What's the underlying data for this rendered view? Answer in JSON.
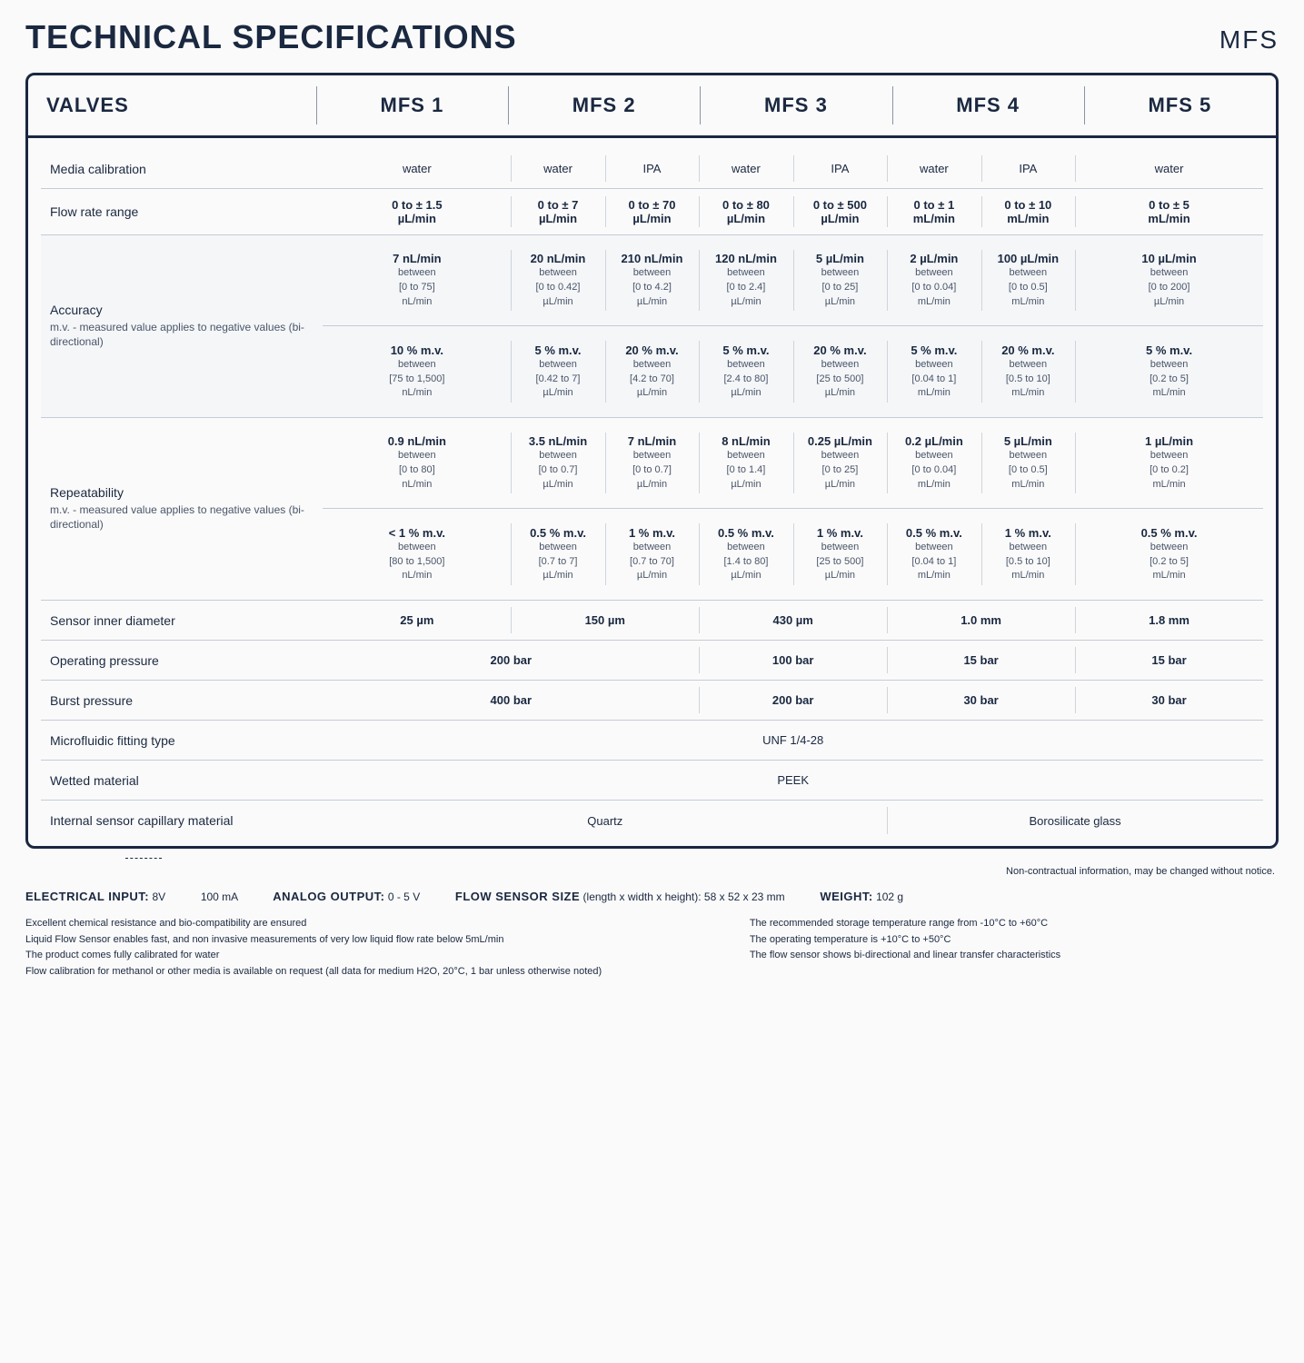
{
  "page": {
    "title": "TECHNICAL SPECIFICATIONS",
    "badge": "MFS",
    "disclaimer": "Non-contractual information, may be changed without notice."
  },
  "columns": [
    "VALVES",
    "MFS 1",
    "MFS 2",
    "MFS 3",
    "MFS 4",
    "MFS 5"
  ],
  "rows": {
    "media_calibration": {
      "label": "Media calibration",
      "values": [
        "water",
        "water",
        "IPA",
        "water",
        "IPA",
        "water",
        "IPA",
        "water"
      ]
    },
    "flow_rate": {
      "label": "Flow rate range",
      "values": [
        {
          "main": "0 to ± 1.5",
          "unit": "µL/min"
        },
        {
          "main": "0 to ± 7",
          "unit": "µL/min"
        },
        {
          "main": "0 to ± 70",
          "unit": "µL/min"
        },
        {
          "main": "0 to ± 80",
          "unit": "µL/min"
        },
        {
          "main": "0 to ± 500",
          "unit": "µL/min"
        },
        {
          "main": "0 to ± 1",
          "unit": "mL/min"
        },
        {
          "main": "0 to ± 10",
          "unit": "mL/min"
        },
        {
          "main": "0 to ± 5",
          "unit": "mL/min"
        }
      ]
    },
    "accuracy": {
      "label": "Accuracy",
      "sublabel": "m.v. - measured value applies to negative values (bi-directional)",
      "top": [
        {
          "main": "7 nL/min",
          "s1": "between",
          "s2": "[0 to 75]",
          "s3": "nL/min"
        },
        {
          "main": "20 nL/min",
          "s1": "between",
          "s2": "[0 to 0.42]",
          "s3": "µL/min"
        },
        {
          "main": "210 nL/min",
          "s1": "between",
          "s2": "[0 to 4.2]",
          "s3": "µL/min"
        },
        {
          "main": "120 nL/min",
          "s1": "between",
          "s2": "[0 to 2.4]",
          "s3": "µL/min"
        },
        {
          "main": "5 µL/min",
          "s1": "between",
          "s2": "[0 to 25]",
          "s3": "µL/min"
        },
        {
          "main": "2 µL/min",
          "s1": "between",
          "s2": "[0 to 0.04]",
          "s3": "mL/min"
        },
        {
          "main": "100 µL/min",
          "s1": "between",
          "s2": "[0 to 0.5]",
          "s3": "mL/min"
        },
        {
          "main": "10 µL/min",
          "s1": "between",
          "s2": "[0 to 200]",
          "s3": "µL/min"
        }
      ],
      "bottom": [
        {
          "main": "10 % m.v.",
          "s1": "between",
          "s2": "[75 to 1,500]",
          "s3": "nL/min"
        },
        {
          "main": "5 % m.v.",
          "s1": "between",
          "s2": "[0.42 to 7]",
          "s3": "µL/min"
        },
        {
          "main": "20 % m.v.",
          "s1": "between",
          "s2": "[4.2 to 70]",
          "s3": "µL/min"
        },
        {
          "main": "5 % m.v.",
          "s1": "between",
          "s2": "[2.4 to 80]",
          "s3": "µL/min"
        },
        {
          "main": "20 % m.v.",
          "s1": "between",
          "s2": "[25 to 500]",
          "s3": "µL/min"
        },
        {
          "main": "5 % m.v.",
          "s1": "between",
          "s2": "[0.04 to 1]",
          "s3": "mL/min"
        },
        {
          "main": "20 % m.v.",
          "s1": "between",
          "s2": "[0.5 to 10]",
          "s3": "mL/min"
        },
        {
          "main": "5 % m.v.",
          "s1": "between",
          "s2": "[0.2 to 5]",
          "s3": "mL/min"
        }
      ]
    },
    "repeatability": {
      "label": "Repeatability",
      "sublabel": "m.v. - measured value applies to negative values (bi-directional)",
      "top": [
        {
          "main": "0.9 nL/min",
          "s1": "between",
          "s2": "[0 to 80]",
          "s3": "nL/min"
        },
        {
          "main": "3.5 nL/min",
          "s1": "between",
          "s2": "[0 to 0.7]",
          "s3": "µL/min"
        },
        {
          "main": "7 nL/min",
          "s1": "between",
          "s2": "[0 to 0.7]",
          "s3": "µL/min"
        },
        {
          "main": "8 nL/min",
          "s1": "between",
          "s2": "[0 to 1.4]",
          "s3": "µL/min"
        },
        {
          "main": "0.25 µL/min",
          "s1": "between",
          "s2": "[0 to 25]",
          "s3": "µL/min"
        },
        {
          "main": "0.2 µL/min",
          "s1": "between",
          "s2": "[0 to 0.04]",
          "s3": "mL/min"
        },
        {
          "main": "5 µL/min",
          "s1": "between",
          "s2": "[0 to 0.5]",
          "s3": "mL/min"
        },
        {
          "main": "1 µL/min",
          "s1": "between",
          "s2": "[0 to 0.2]",
          "s3": "mL/min"
        }
      ],
      "bottom": [
        {
          "main": "< 1 % m.v.",
          "s1": "between",
          "s2": "[80 to 1,500]",
          "s3": "nL/min"
        },
        {
          "main": "0.5 % m.v.",
          "s1": "between",
          "s2": "[0.7 to 7]",
          "s3": "µL/min"
        },
        {
          "main": "1 % m.v.",
          "s1": "between",
          "s2": "[0.7 to 70]",
          "s3": "µL/min"
        },
        {
          "main": "0.5 % m.v.",
          "s1": "between",
          "s2": "[1.4 to 80]",
          "s3": "µL/min"
        },
        {
          "main": "1 % m.v.",
          "s1": "between",
          "s2": "[25 to 500]",
          "s3": "µL/min"
        },
        {
          "main": "0.5 % m.v.",
          "s1": "between",
          "s2": "[0.04 to 1]",
          "s3": "mL/min"
        },
        {
          "main": "1 % m.v.",
          "s1": "between",
          "s2": "[0.5 to 10]",
          "s3": "mL/min"
        },
        {
          "main": "0.5 % m.v.",
          "s1": "between",
          "s2": "[0.2 to 5]",
          "s3": "mL/min"
        }
      ]
    },
    "sensor_diameter": {
      "label": "Sensor inner diameter",
      "values": [
        "25 µm",
        "150 µm",
        "430 µm",
        "1.0 mm",
        "1.8 mm"
      ]
    },
    "operating_pressure": {
      "label": "Operating pressure",
      "values": [
        "200 bar",
        "100 bar",
        "15 bar",
        "15 bar"
      ]
    },
    "burst_pressure": {
      "label": "Burst pressure",
      "values": [
        "400 bar",
        "200 bar",
        "30 bar",
        "30 bar"
      ]
    },
    "fitting_type": {
      "label": "Microfluidic fitting type",
      "value": "UNF 1/4-28"
    },
    "wetted_material": {
      "label": "Wetted material",
      "value": "PEEK"
    },
    "capillary_material": {
      "label": "Internal sensor capillary material",
      "values": [
        "Quartz",
        "Borosilicate glass"
      ]
    }
  },
  "electrical": {
    "input_label": "ELECTRICAL INPUT:",
    "input_v": "8V",
    "input_ma": "100 mA",
    "analog_label": "ANALOG OUTPUT:",
    "analog_val": "0 - 5 V",
    "size_label": "FLOW SENSOR SIZE",
    "size_desc": "(length x width x height): 58 x 52 x 23 mm",
    "weight_label": "WEIGHT:",
    "weight_val": "102 g"
  },
  "notes_left": [
    "Excellent chemical resistance and bio-compatibility are ensured",
    "Liquid Flow Sensor enables fast, and non invasive measurements of very low liquid flow rate below 5mL/min",
    "The product comes fully calibrated for water",
    "Flow calibration for methanol or other media is available on request (all data for medium H2O, 20°C, 1 bar unless otherwise noted)"
  ],
  "notes_right": [
    "The recommended storage temperature range from -10°C to +60°C",
    "The operating temperature is +10°C to +50°C",
    "The flow sensor shows bi-directional and linear transfer characteristics"
  ]
}
